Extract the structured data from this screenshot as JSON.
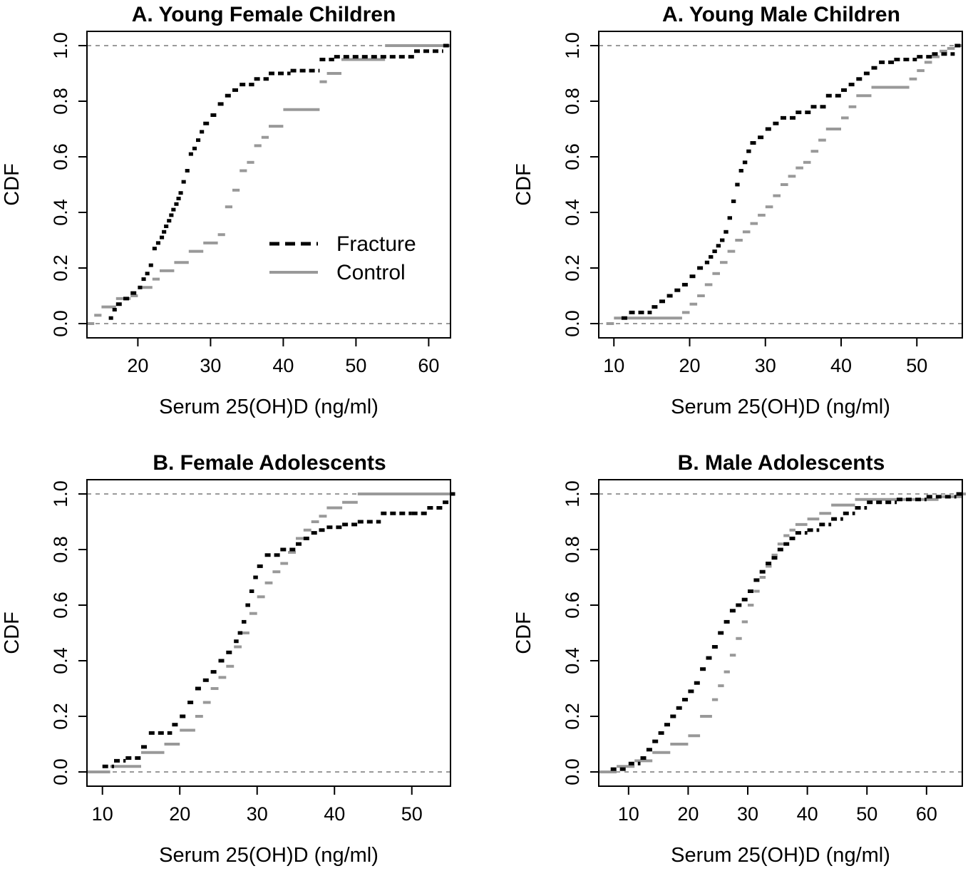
{
  "chart_data": [
    {
      "type": "line",
      "title": "A. Young Female Children",
      "xlabel": "Serum 25(OH)D (ng/ml)",
      "ylabel": "CDF",
      "xlim": [
        13,
        63
      ],
      "ylim": [
        0,
        1
      ],
      "xticks": [
        20,
        30,
        40,
        50,
        60
      ],
      "yticks": [
        0.0,
        0.2,
        0.4,
        0.6,
        0.8,
        1.0
      ],
      "reference_lines": [
        0,
        1
      ],
      "legend": {
        "placement": "center-right",
        "entries": [
          "Fracture",
          "Control"
        ]
      },
      "series": [
        {
          "name": "Fracture",
          "color": "#000000",
          "style": "dashed",
          "x": [
            16,
            16.5,
            17,
            18,
            19,
            20,
            20.5,
            21,
            21.5,
            22,
            22.5,
            23,
            23.3,
            23.6,
            24,
            24.3,
            24.6,
            25,
            25.3,
            25.6,
            26,
            26.5,
            27,
            27.5,
            28,
            28.5,
            29,
            30,
            31,
            32,
            33,
            34,
            36,
            38,
            41,
            45,
            47,
            58,
            62
          ],
          "y": [
            0.02,
            0.05,
            0.07,
            0.09,
            0.11,
            0.13,
            0.16,
            0.18,
            0.21,
            0.27,
            0.29,
            0.31,
            0.33,
            0.35,
            0.37,
            0.39,
            0.41,
            0.43,
            0.45,
            0.47,
            0.51,
            0.55,
            0.61,
            0.63,
            0.66,
            0.69,
            0.72,
            0.75,
            0.79,
            0.82,
            0.84,
            0.86,
            0.88,
            0.9,
            0.91,
            0.95,
            0.96,
            0.98,
            1.0
          ]
        },
        {
          "name": "Control",
          "color": "#999999",
          "style": "solid",
          "x": [
            13,
            14,
            15,
            17,
            19,
            20,
            22,
            23,
            25,
            27,
            29,
            31,
            32,
            33,
            34,
            35,
            36,
            37,
            38,
            40,
            45,
            46,
            48,
            54,
            62
          ],
          "y": [
            0.0,
            0.03,
            0.06,
            0.09,
            0.1,
            0.13,
            0.16,
            0.19,
            0.22,
            0.26,
            0.29,
            0.32,
            0.42,
            0.48,
            0.55,
            0.58,
            0.64,
            0.67,
            0.71,
            0.77,
            0.87,
            0.9,
            0.95,
            1.0,
            1.0
          ]
        }
      ]
    },
    {
      "type": "line",
      "title": "A. Young Male Children",
      "xlabel": "Serum 25(OH)D (ng/ml)",
      "ylabel": "CDF",
      "xlim": [
        8,
        56
      ],
      "ylim": [
        0,
        1
      ],
      "xticks": [
        10,
        20,
        30,
        40,
        50
      ],
      "yticks": [
        0.0,
        0.2,
        0.4,
        0.6,
        0.8,
        1.0
      ],
      "reference_lines": [
        0,
        1
      ],
      "series": [
        {
          "name": "Fracture",
          "color": "#000000",
          "style": "dashed",
          "x": [
            11,
            12,
            15,
            16,
            17,
            18,
            19,
            20,
            21,
            22,
            22.5,
            23,
            23.5,
            24,
            24.5,
            25,
            25.5,
            26,
            26.5,
            27,
            27.5,
            28,
            29,
            30,
            31,
            32,
            34,
            36,
            38,
            40,
            41,
            42,
            43,
            44,
            45,
            47,
            50,
            52,
            55
          ],
          "y": [
            0.02,
            0.04,
            0.06,
            0.08,
            0.1,
            0.12,
            0.14,
            0.17,
            0.2,
            0.22,
            0.24,
            0.26,
            0.28,
            0.3,
            0.33,
            0.38,
            0.44,
            0.5,
            0.55,
            0.58,
            0.62,
            0.65,
            0.67,
            0.7,
            0.72,
            0.74,
            0.76,
            0.78,
            0.82,
            0.84,
            0.86,
            0.88,
            0.9,
            0.92,
            0.94,
            0.95,
            0.96,
            0.97,
            1.0
          ]
        },
        {
          "name": "Control",
          "color": "#999999",
          "style": "solid",
          "x": [
            9,
            10,
            19,
            20,
            21,
            22,
            23,
            24,
            25,
            26,
            27,
            28,
            29,
            30,
            31,
            32,
            33,
            34,
            35,
            36,
            37,
            38,
            40,
            41,
            42,
            44,
            48,
            49,
            50,
            51,
            52,
            53,
            54,
            55
          ],
          "y": [
            0.0,
            0.02,
            0.04,
            0.07,
            0.1,
            0.14,
            0.18,
            0.22,
            0.26,
            0.3,
            0.33,
            0.36,
            0.39,
            0.42,
            0.46,
            0.5,
            0.53,
            0.56,
            0.58,
            0.62,
            0.66,
            0.7,
            0.74,
            0.78,
            0.82,
            0.85,
            0.85,
            0.88,
            0.91,
            0.94,
            0.96,
            0.98,
            0.99,
            1.0
          ]
        }
      ]
    },
    {
      "type": "line",
      "title": "B. Female Adolescents",
      "xlabel": "Serum 25(OH)D (ng/ml)",
      "ylabel": "CDF",
      "xlim": [
        8,
        55
      ],
      "ylim": [
        0,
        1
      ],
      "xticks": [
        10,
        20,
        30,
        40,
        50
      ],
      "yticks": [
        0.0,
        0.2,
        0.4,
        0.6,
        0.8,
        1.0
      ],
      "reference_lines": [
        0,
        1
      ],
      "series": [
        {
          "name": "Fracture",
          "color": "#000000",
          "style": "dashed",
          "x": [
            10,
            11.5,
            13,
            15,
            16,
            19,
            20,
            21,
            22,
            23,
            24,
            25,
            26,
            27,
            27.5,
            28,
            28.5,
            29,
            29.5,
            30,
            31,
            33,
            35,
            36,
            37,
            38,
            39,
            41,
            43,
            46,
            50,
            52,
            54,
            55
          ],
          "y": [
            0.02,
            0.04,
            0.05,
            0.09,
            0.14,
            0.17,
            0.2,
            0.25,
            0.3,
            0.33,
            0.36,
            0.4,
            0.43,
            0.47,
            0.5,
            0.54,
            0.6,
            0.65,
            0.7,
            0.74,
            0.78,
            0.8,
            0.82,
            0.84,
            0.86,
            0.87,
            0.88,
            0.89,
            0.9,
            0.93,
            0.93,
            0.95,
            0.97,
            1.0
          ]
        },
        {
          "name": "Control",
          "color": "#999999",
          "style": "solid",
          "x": [
            8,
            11,
            15,
            18,
            20,
            22,
            23,
            24,
            25,
            26,
            27,
            28,
            29,
            30,
            31,
            32,
            33,
            34,
            35,
            36,
            37,
            38,
            39,
            41,
            43,
            48,
            55
          ],
          "y": [
            0.0,
            0.02,
            0.07,
            0.1,
            0.15,
            0.2,
            0.25,
            0.3,
            0.34,
            0.38,
            0.45,
            0.5,
            0.57,
            0.63,
            0.68,
            0.72,
            0.75,
            0.79,
            0.84,
            0.87,
            0.9,
            0.92,
            0.95,
            0.97,
            1.0,
            1.0,
            1.0
          ]
        }
      ]
    },
    {
      "type": "line",
      "title": "B. Male Adolescents",
      "xlabel": "Serum 25(OH)D (ng/ml)",
      "ylabel": "CDF",
      "xlim": [
        5,
        66
      ],
      "ylim": [
        0,
        1
      ],
      "xticks": [
        10,
        20,
        30,
        40,
        50,
        60
      ],
      "yticks": [
        0.0,
        0.2,
        0.4,
        0.6,
        0.8,
        1.0
      ],
      "reference_lines": [
        0,
        1
      ],
      "series": [
        {
          "name": "Fracture",
          "color": "#000000",
          "style": "dashed",
          "x": [
            7,
            10,
            12,
            13,
            14,
            15,
            16,
            17,
            18,
            19,
            20,
            21,
            22,
            23,
            24,
            25,
            26,
            27,
            28,
            29,
            30,
            31,
            32,
            33,
            34,
            35,
            36,
            37,
            38,
            40,
            42,
            44,
            46,
            48,
            50,
            55,
            60,
            65
          ],
          "y": [
            0.01,
            0.03,
            0.05,
            0.08,
            0.11,
            0.14,
            0.17,
            0.2,
            0.23,
            0.26,
            0.29,
            0.32,
            0.37,
            0.41,
            0.45,
            0.5,
            0.54,
            0.58,
            0.6,
            0.62,
            0.65,
            0.69,
            0.72,
            0.75,
            0.77,
            0.8,
            0.82,
            0.84,
            0.86,
            0.87,
            0.89,
            0.91,
            0.93,
            0.95,
            0.97,
            0.98,
            0.99,
            1.0
          ]
        },
        {
          "name": "Control",
          "color": "#999999",
          "style": "solid",
          "x": [
            5,
            8,
            11,
            14,
            17,
            20,
            22,
            24,
            25,
            26,
            27,
            28,
            29,
            30,
            31,
            32,
            33,
            34,
            35,
            36,
            37,
            38,
            40,
            42,
            44,
            48,
            55,
            62,
            66
          ],
          "y": [
            0.0,
            0.02,
            0.04,
            0.07,
            0.1,
            0.13,
            0.2,
            0.26,
            0.31,
            0.36,
            0.42,
            0.48,
            0.54,
            0.6,
            0.65,
            0.7,
            0.74,
            0.78,
            0.82,
            0.85,
            0.87,
            0.89,
            0.91,
            0.93,
            0.96,
            0.98,
            0.98,
            0.99,
            1.0
          ]
        }
      ]
    }
  ]
}
